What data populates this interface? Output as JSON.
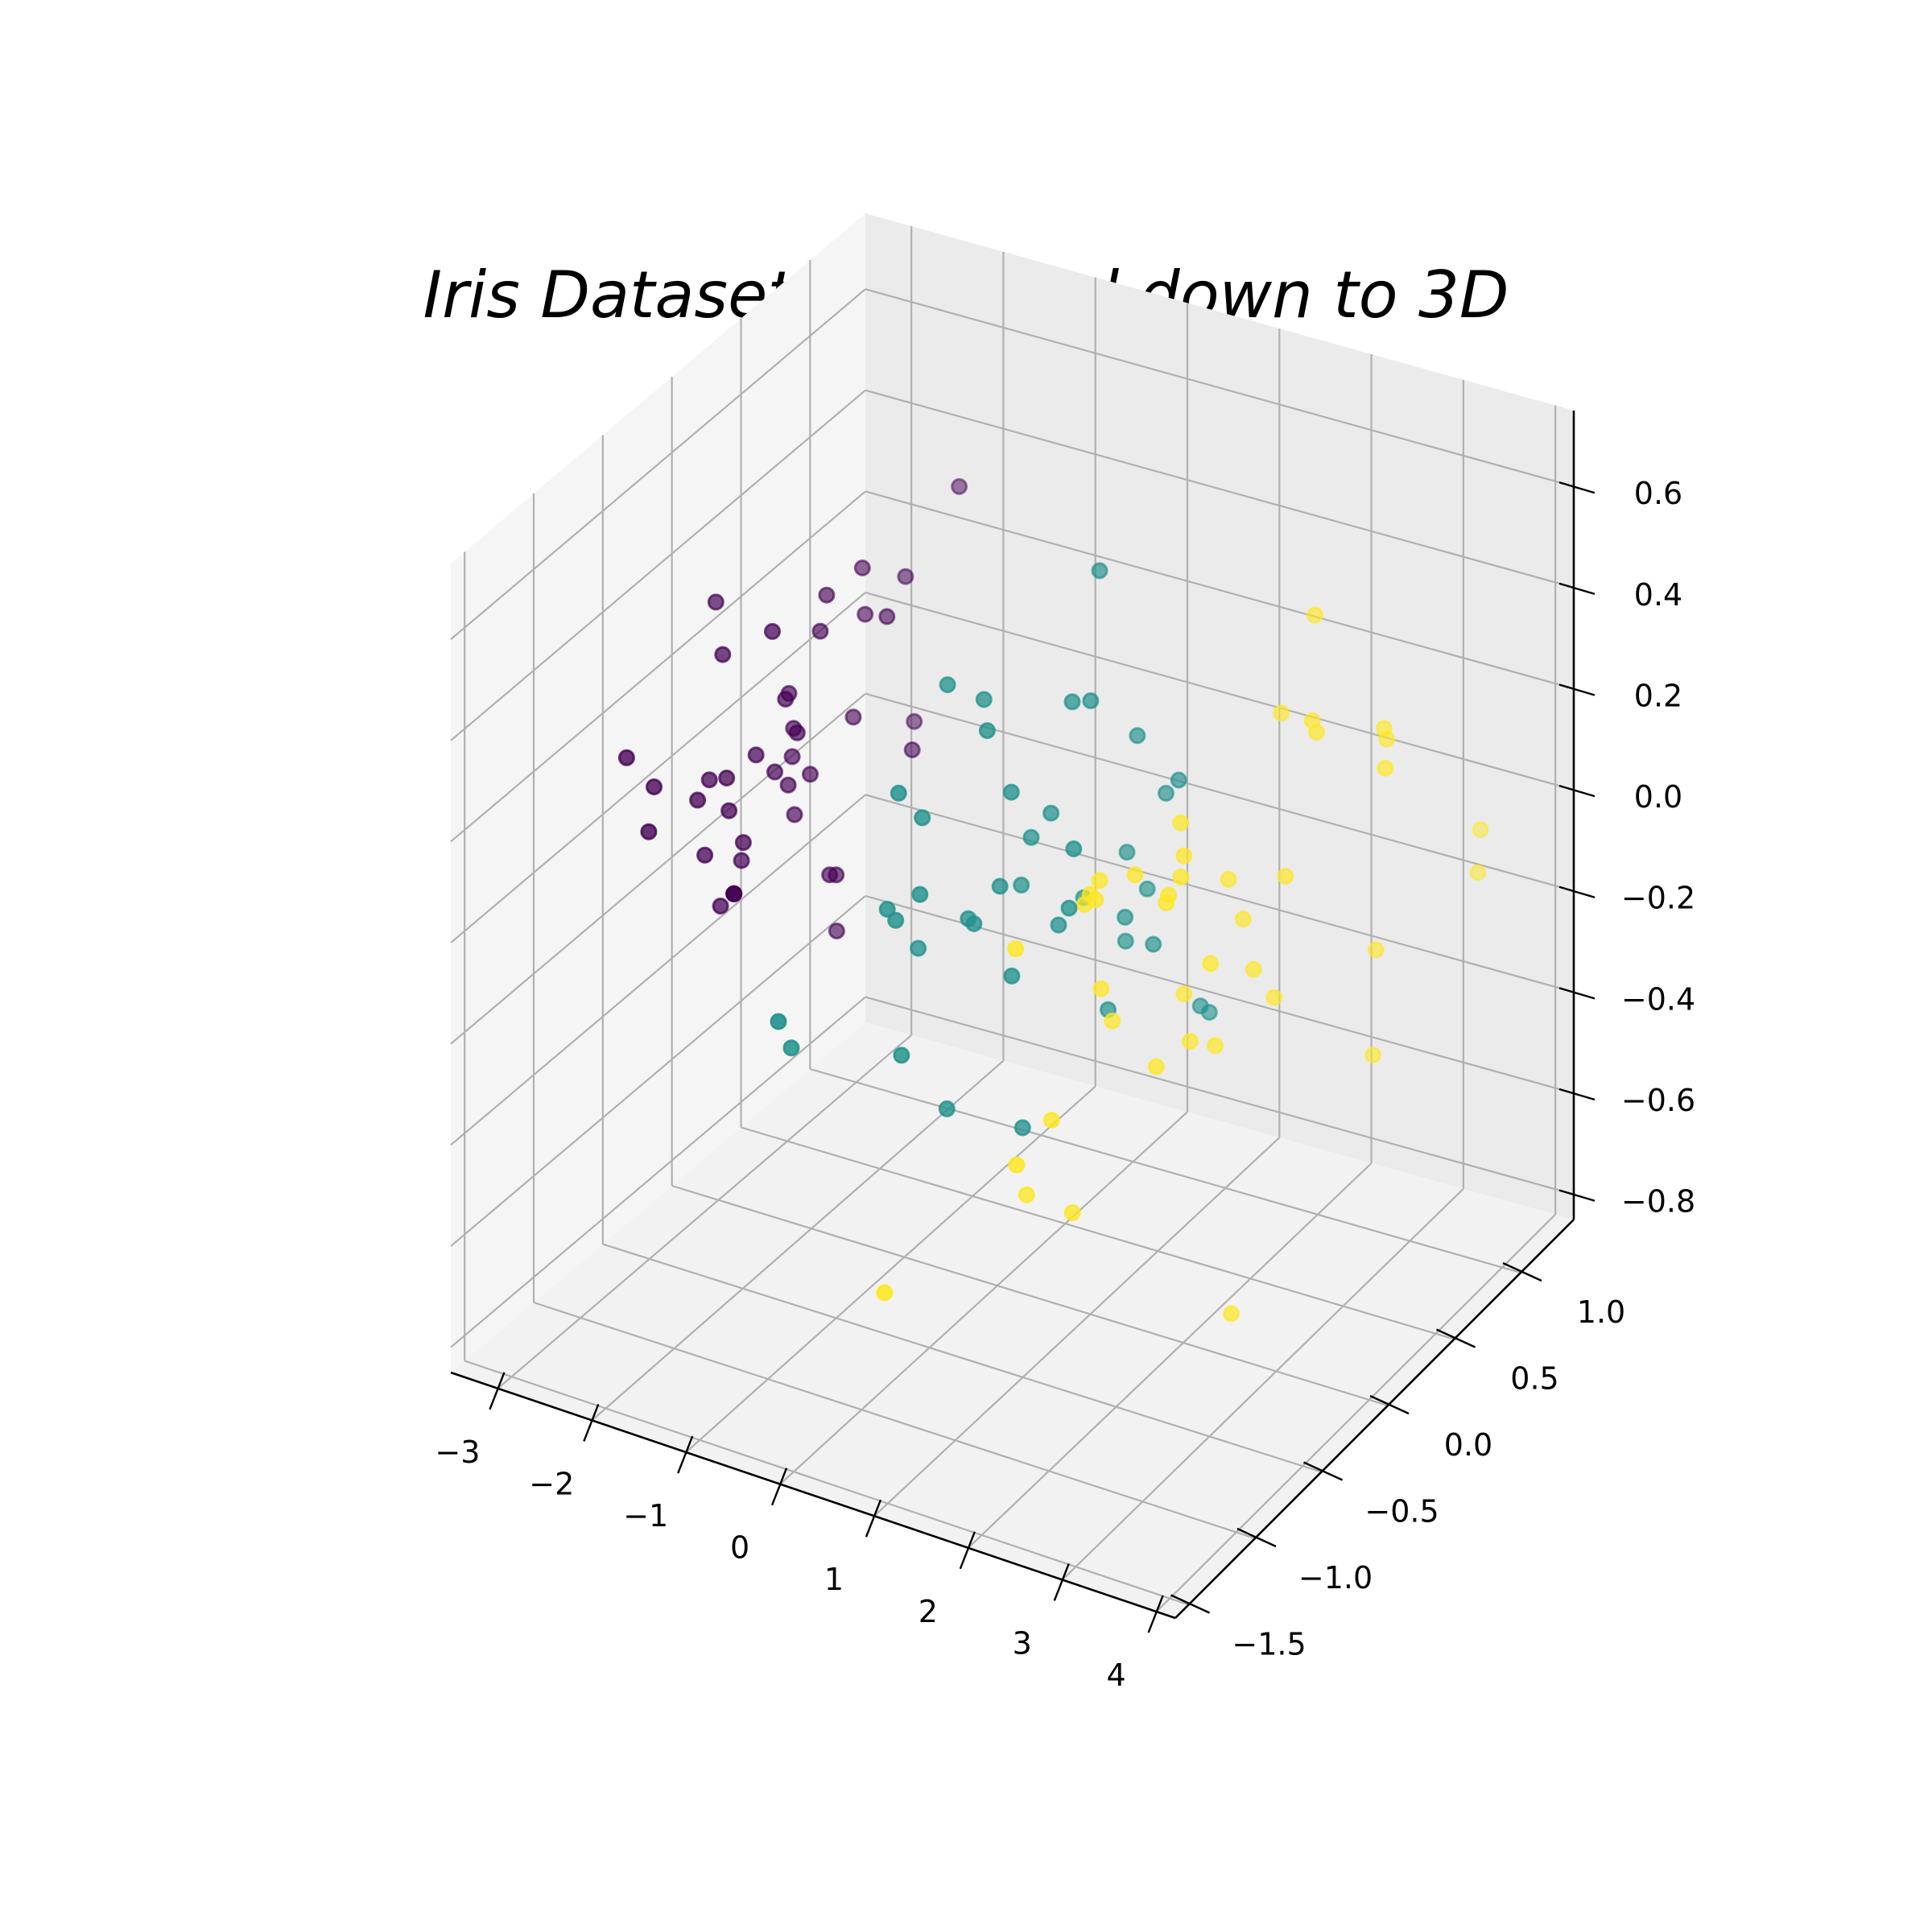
{
  "chart_data": {
    "type": "scatter",
    "projection": "3d",
    "title": "Iris Dataset projected down to 3D",
    "xlabel": "",
    "ylabel": "",
    "zlabel": "",
    "grid": true,
    "xlim": [
      -3.5,
      4.2
    ],
    "ylim": [
      -1.6,
      1.4
    ],
    "zlim": [
      -0.85,
      0.75
    ],
    "x_ticks": [
      -3,
      -2,
      -1,
      0,
      1,
      2,
      3,
      4
    ],
    "x_tick_labels": [
      "−3",
      "−2",
      "−1",
      "0",
      "1",
      "2",
      "3",
      "4"
    ],
    "y_ticks": [
      -1.5,
      -1.0,
      -0.5,
      0.0,
      0.5,
      1.0
    ],
    "y_tick_labels": [
      "−1.5",
      "−1.0",
      "−0.5",
      "0.0",
      "0.5",
      "1.0"
    ],
    "z_ticks": [
      -0.8,
      -0.6,
      -0.4,
      -0.2,
      0.0,
      0.2,
      0.4,
      0.6
    ],
    "z_tick_labels": [
      "−0.8",
      "−0.6",
      "−0.4",
      "−0.2",
      "0.0",
      "0.2",
      "0.4",
      "0.6"
    ],
    "colors": {
      "class_0": "#440154",
      "class_1": "#21918c",
      "class_2": "#fde725"
    },
    "series": [
      {
        "color": "#440154",
        "points": [
          [
            -2.68,
            0.32,
            -0.03
          ],
          [
            -2.71,
            -0.18,
            -0.21
          ],
          [
            -2.89,
            -0.14,
            0.02
          ],
          [
            -2.75,
            -0.32,
            0.03
          ],
          [
            -2.73,
            0.33,
            0.09
          ],
          [
            -2.28,
            0.74,
            0.17
          ],
          [
            -2.82,
            -0.09,
            0.26
          ],
          [
            -2.63,
            0.16,
            -0.02
          ],
          [
            -2.89,
            -0.58,
            0.02
          ],
          [
            -2.67,
            -0.11,
            -0.2
          ],
          [
            -2.51,
            0.65,
            -0.02
          ],
          [
            -2.61,
            0.01,
            0.05
          ],
          [
            -2.79,
            -0.24,
            -0.1
          ],
          [
            -3.23,
            -0.51,
            0.13
          ],
          [
            -2.64,
            1.18,
            -0.16
          ],
          [
            -2.39,
            1.34,
            0.28
          ],
          [
            -2.62,
            0.81,
            0.14
          ],
          [
            -2.65,
            0.31,
            0.03
          ],
          [
            -2.2,
            0.87,
            -0.12
          ],
          [
            -2.59,
            0.51,
            0.25
          ],
          [
            -2.31,
            0.39,
            -0.26
          ],
          [
            -2.54,
            0.43,
            0.2
          ],
          [
            -3.22,
            0.13,
            0.29
          ],
          [
            -2.3,
            0.1,
            0.09
          ],
          [
            -2.36,
            -0.04,
            0.32
          ],
          [
            -2.51,
            -0.15,
            -0.08
          ],
          [
            -2.47,
            0.13,
            0.14
          ],
          [
            -2.56,
            0.37,
            -0.07
          ],
          [
            -2.64,
            0.31,
            -0.14
          ],
          [
            -2.63,
            -0.19,
            0.05
          ],
          [
            -2.59,
            -0.2,
            -0.01
          ],
          [
            -2.41,
            0.41,
            -0.27
          ],
          [
            -2.65,
            0.81,
            0.23
          ],
          [
            -2.6,
            1.09,
            0.15
          ],
          [
            -2.67,
            -0.11,
            -0.2
          ],
          [
            -2.87,
            0.08,
            -0.19
          ],
          [
            -2.63,
            0.61,
            -0.44
          ],
          [
            -2.67,
            -0.11,
            -0.2
          ],
          [
            -2.98,
            -0.48,
            0.08
          ],
          [
            -2.59,
            0.23,
            -0.06
          ]
        ]
      },
      {
        "color": "#21918c",
        "points": [
          [
            1.28,
            0.69,
            -0.41
          ],
          [
            0.93,
            0.32,
            -0.02
          ],
          [
            1.46,
            0.5,
            -0.34
          ],
          [
            0.18,
            -0.83,
            -0.18
          ],
          [
            1.09,
            0.07,
            -0.26
          ],
          [
            0.64,
            -0.42,
            0.08
          ],
          [
            1.1,
            0.28,
            0.23
          ],
          [
            -0.75,
            -1.0,
            -0.18
          ],
          [
            1.04,
            0.23,
            -0.12
          ],
          [
            -0.01,
            -0.72,
            0.3
          ],
          [
            -0.51,
            -1.26,
            -0.05
          ],
          [
            0.51,
            -0.1,
            0.09
          ],
          [
            0.26,
            -0.55,
            -0.35
          ],
          [
            0.98,
            -0.12,
            0.39
          ],
          [
            -0.17,
            -0.25,
            0.39
          ],
          [
            0.93,
            0.47,
            -0.13
          ],
          [
            0.66,
            -0.35,
            0.25
          ],
          [
            0.23,
            -0.33,
            -0.04
          ],
          [
            0.94,
            -0.54,
            -0.05
          ],
          [
            0.04,
            -0.58,
            0.22
          ],
          [
            1.12,
            -0.08,
            0.39
          ],
          [
            0.36,
            -0.07,
            -0.02
          ],
          [
            1.3,
            -0.33,
            0.17
          ],
          [
            0.92,
            -0.18,
            -0.04
          ],
          [
            0.71,
            0.15,
            -0.08
          ],
          [
            0.9,
            0.33,
            -0.2
          ],
          [
            1.33,
            0.24,
            -0.16
          ],
          [
            1.56,
            0.27,
            0.17
          ],
          [
            0.81,
            -0.16,
            0.17
          ],
          [
            -0.31,
            -0.37,
            -0.11
          ],
          [
            -0.07,
            -0.7,
            0.04
          ],
          [
            -0.19,
            -0.68,
            0.05
          ],
          [
            0.14,
            -0.31,
            -0.04
          ],
          [
            1.38,
            -0.42,
            0.08
          ],
          [
            0.59,
            -0.48,
            0.4
          ],
          [
            0.81,
            0.2,
            0.56
          ],
          [
            1.22,
            0.41,
            0.09
          ],
          [
            0.81,
            -0.37,
            -0.4
          ],
          [
            0.25,
            -0.27,
            0.39
          ],
          [
            0.16,
            -0.68,
            0.1
          ]
        ]
      },
      {
        "color": "#fde725",
        "points": [
          [
            2.53,
            -0.01,
            -0.76
          ],
          [
            1.41,
            -0.57,
            -0.3
          ],
          [
            2.61,
            0.34,
            0.02
          ],
          [
            1.97,
            -0.18,
            -0.26
          ],
          [
            2.35,
            -0.04,
            -0.07
          ],
          [
            3.4,
            0.55,
            0.28
          ],
          [
            0.52,
            -1.19,
            -0.54
          ],
          [
            2.93,
            0.35,
            0.32
          ],
          [
            2.32,
            -0.24,
            0.15
          ],
          [
            2.92,
            0.78,
            -0.43
          ],
          [
            1.66,
            0.24,
            -0.24
          ],
          [
            1.8,
            -0.22,
            0.12
          ],
          [
            2.17,
            0.22,
            0.02
          ],
          [
            1.34,
            -0.78,
            -0.34
          ],
          [
            1.59,
            -0.54,
            -0.48
          ],
          [
            1.9,
            0.12,
            -0.29
          ],
          [
            1.95,
            0.04,
            0.1
          ],
          [
            3.49,
            1.17,
            -0.14
          ],
          [
            3.8,
            0.26,
            0.32
          ],
          [
            1.3,
            -0.76,
            0.08
          ],
          [
            2.43,
            0.38,
            -0.24
          ],
          [
            1.2,
            -0.61,
            -0.45
          ],
          [
            3.5,
            0.46,
            0.33
          ],
          [
            1.39,
            -0.2,
            0.08
          ],
          [
            2.28,
            0.33,
            -0.18
          ],
          [
            2.61,
            0.56,
            0.48
          ],
          [
            1.26,
            -0.18,
            0.04
          ],
          [
            1.29,
            -0.12,
            -0.16
          ],
          [
            2.12,
            -0.21,
            0.08
          ],
          [
            2.39,
            0.46,
            0.3
          ],
          [
            2.84,
            0.38,
            0.33
          ],
          [
            3.23,
            1.37,
            -0.12
          ],
          [
            2.16,
            -0.22,
            0.1
          ],
          [
            1.44,
            -0.14,
            -0.21
          ],
          [
            1.78,
            -0.5,
            0.14
          ],
          [
            3.08,
            0.69,
            -0.19
          ],
          [
            2.14,
            0.14,
            -0.29
          ],
          [
            1.9,
            0.05,
            0.16
          ],
          [
            1.17,
            -0.16,
            0.01
          ],
          [
            2.11,
            0.37,
            -0.1
          ]
        ]
      }
    ]
  }
}
